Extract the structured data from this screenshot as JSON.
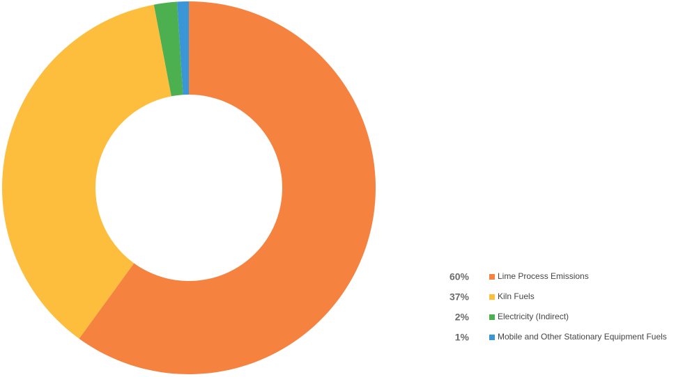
{
  "chart_data": {
    "type": "donut",
    "categories": [
      "Lime Process Emissions",
      "Kiln Fuels",
      "Electricity (Indirect)",
      "Mobile and Other Stationary Equipment Fuels"
    ],
    "values": [
      60,
      37,
      2,
      1
    ],
    "value_labels": [
      "60%",
      "37%",
      "2%",
      "1%"
    ],
    "colors": [
      "#f6823f",
      "#fdbe3e",
      "#4caf50",
      "#3b96d8"
    ],
    "legend": "bottom-right"
  }
}
